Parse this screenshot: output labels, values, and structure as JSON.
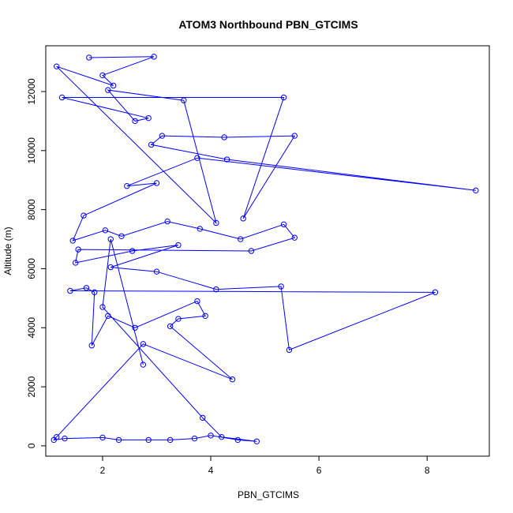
{
  "chart_data": {
    "type": "line",
    "title": "ATOM3 Northbound PBN_GTCIMS",
    "xlabel": "PBN_GTCIMS",
    "ylabel": "Altitude (m)",
    "xlim": [
      0.95,
      9.15
    ],
    "ylim": [
      -350,
      13550
    ],
    "xticks": [
      2,
      4,
      6,
      8
    ],
    "yticks": [
      0,
      2000,
      4000,
      6000,
      8000,
      10000,
      12000
    ],
    "grid": false,
    "legend": "none",
    "colors": {
      "series": "#0000ff"
    },
    "markers": "open-circle",
    "series": [
      {
        "points": [
          [
            1.75,
            13150
          ],
          [
            2.95,
            13180
          ],
          [
            2.0,
            12550
          ],
          [
            2.2,
            12200
          ],
          [
            1.15,
            12850
          ],
          [
            4.1,
            7550
          ],
          [
            3.5,
            11700
          ],
          [
            2.1,
            12050
          ],
          [
            2.6,
            11000
          ],
          [
            2.85,
            11100
          ],
          [
            1.25,
            11800
          ],
          [
            5.35,
            11800
          ],
          [
            4.6,
            7700
          ],
          [
            5.55,
            10500
          ],
          [
            4.25,
            10450
          ],
          [
            3.1,
            10500
          ],
          [
            2.9,
            10200
          ],
          [
            4.3,
            9700
          ],
          [
            8.9,
            8650
          ],
          [
            3.75,
            9750
          ],
          [
            2.45,
            8800
          ],
          [
            3.0,
            8900
          ],
          [
            1.65,
            7800
          ],
          [
            1.45,
            6950
          ],
          [
            2.05,
            7300
          ],
          [
            2.35,
            7100
          ],
          [
            3.2,
            7600
          ],
          [
            3.8,
            7350
          ],
          [
            4.55,
            7000
          ],
          [
            5.35,
            7500
          ],
          [
            5.55,
            7050
          ],
          [
            4.75,
            6600
          ],
          [
            1.55,
            6650
          ],
          [
            1.5,
            6200
          ],
          [
            2.55,
            6600
          ],
          [
            3.4,
            6800
          ],
          [
            2.15,
            6050
          ],
          [
            3.0,
            5900
          ],
          [
            4.1,
            5300
          ],
          [
            5.3,
            5400
          ],
          [
            5.45,
            3250
          ],
          [
            8.15,
            5200
          ],
          [
            1.4,
            5250
          ],
          [
            1.7,
            5350
          ],
          [
            1.85,
            5200
          ],
          [
            1.8,
            3400
          ],
          [
            2.1,
            4400
          ],
          [
            2.6,
            4000
          ],
          [
            3.75,
            4900
          ],
          [
            3.9,
            4400
          ],
          [
            3.4,
            4300
          ],
          [
            3.25,
            4050
          ],
          [
            4.4,
            2250
          ],
          [
            2.75,
            3450
          ],
          [
            1.15,
            300
          ],
          [
            1.1,
            200
          ],
          [
            1.3,
            250
          ],
          [
            2.0,
            280
          ],
          [
            2.3,
            200
          ],
          [
            2.85,
            200
          ],
          [
            3.25,
            200
          ],
          [
            3.7,
            250
          ],
          [
            4.0,
            350
          ],
          [
            4.5,
            200
          ],
          [
            4.85,
            150
          ],
          [
            4.2,
            300
          ],
          [
            3.85,
            950
          ],
          [
            2.0,
            4700
          ],
          [
            2.15,
            7000
          ],
          [
            2.75,
            2750
          ]
        ]
      }
    ]
  }
}
